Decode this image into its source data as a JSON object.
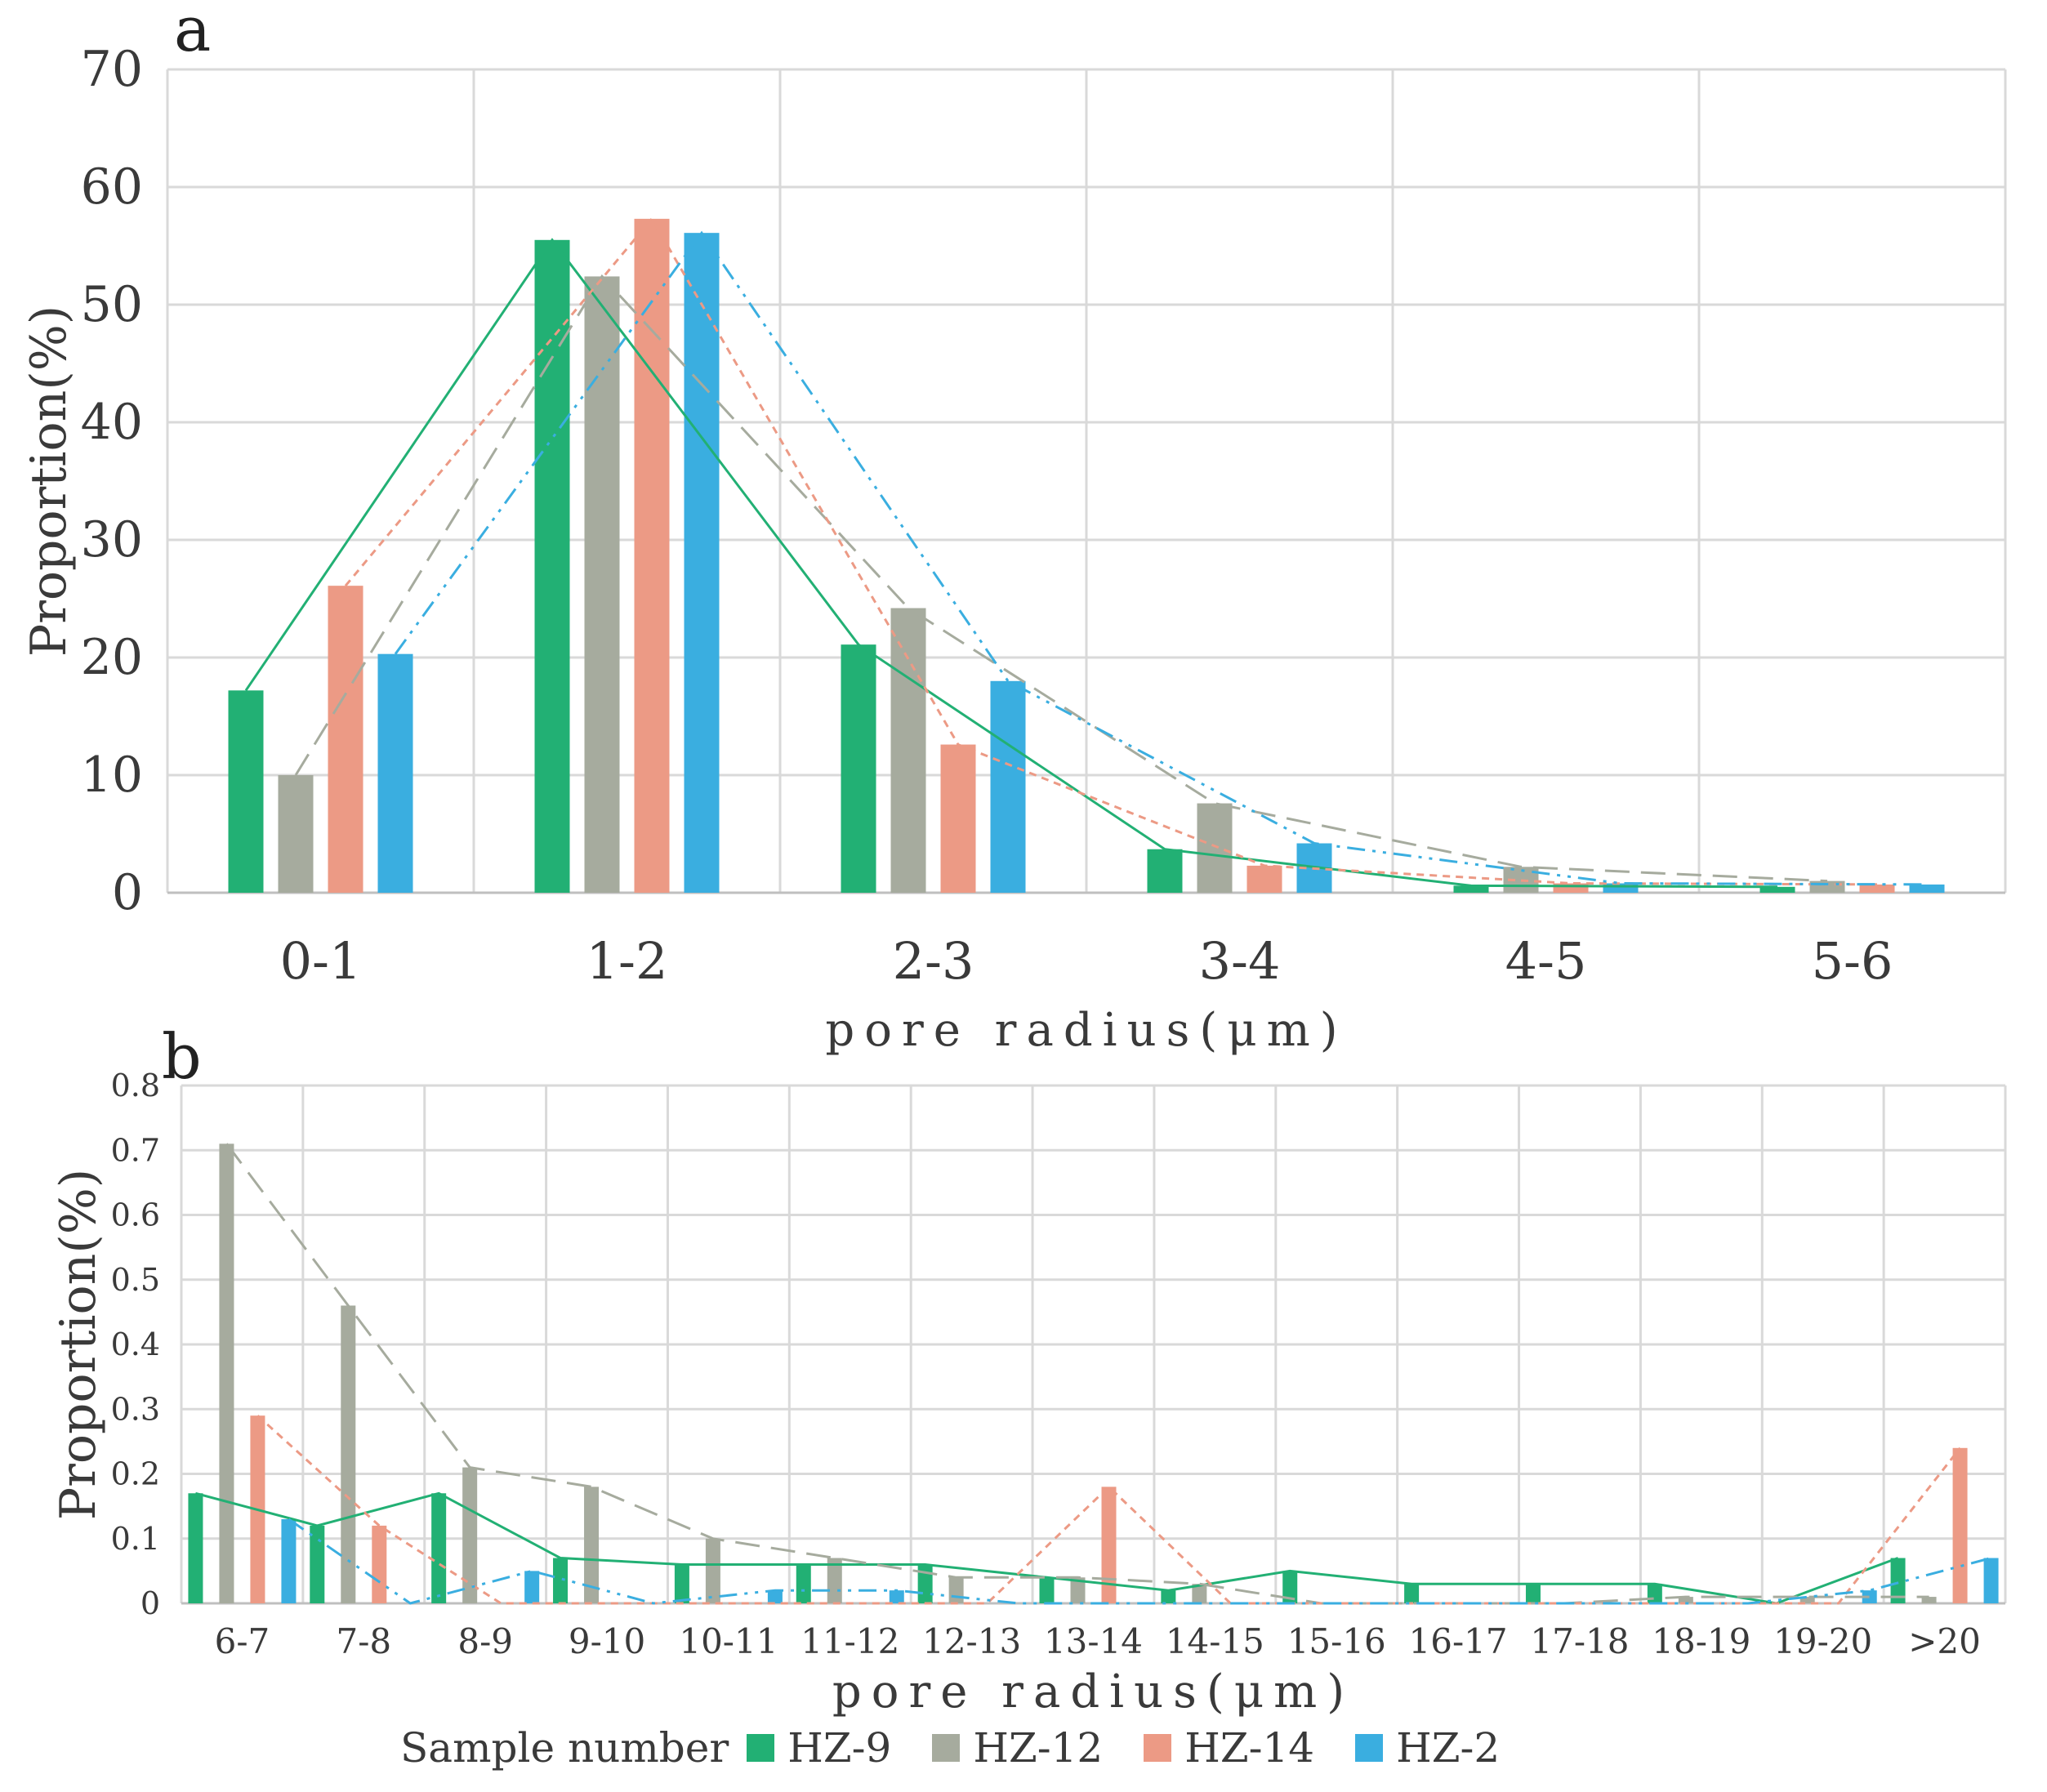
{
  "figure": {
    "legend_title": "Sample number",
    "series_names": [
      "HZ-9",
      "HZ-12",
      "HZ-14",
      "HZ-2"
    ],
    "colors": {
      "HZ-9": "#22b074",
      "HZ-12": "#a6ab9e",
      "HZ-14": "#ec9a85",
      "HZ-2": "#3aaee0",
      "grid": "#d9d9d9",
      "text": "#3a3a3a"
    }
  },
  "chart_data": [
    {
      "panel_label": "a",
      "type": "bar",
      "overlay": "line",
      "categories": [
        "0-1",
        "1-2",
        "2-3",
        "3-4",
        "4-5",
        "5-6"
      ],
      "series": [
        {
          "name": "HZ-9",
          "values": [
            17.2,
            55.5,
            21.1,
            3.7,
            0.6,
            0.5
          ]
        },
        {
          "name": "HZ-12",
          "values": [
            10.0,
            52.4,
            24.2,
            7.6,
            2.2,
            1.0
          ]
        },
        {
          "name": "HZ-14",
          "values": [
            26.1,
            57.3,
            12.6,
            2.3,
            0.8,
            0.7
          ]
        },
        {
          "name": "HZ-2",
          "values": [
            20.3,
            56.1,
            18.0,
            4.2,
            0.8,
            0.7
          ]
        }
      ],
      "xlabel": "pore radius(μm)",
      "ylabel": "Proportion(%)",
      "ylim": [
        0,
        70
      ],
      "yticks": [
        0,
        10,
        20,
        30,
        40,
        50,
        60,
        70
      ],
      "grid": true
    },
    {
      "panel_label": "b",
      "type": "bar",
      "overlay": "line",
      "categories": [
        "6-7",
        "7-8",
        "8-9",
        "9-10",
        "10-11",
        "11-12",
        "12-13",
        "13-14",
        "14-15",
        "15-16",
        "16-17",
        "17-18",
        "18-19",
        "19-20",
        ">20"
      ],
      "series": [
        {
          "name": "HZ-9",
          "values": [
            0.17,
            0.12,
            0.17,
            0.07,
            0.06,
            0.06,
            0.06,
            0.04,
            0.02,
            0.05,
            0.03,
            0.03,
            0.03,
            0.0,
            0.07
          ]
        },
        {
          "name": "HZ-12",
          "values": [
            0.71,
            0.46,
            0.21,
            0.18,
            0.1,
            0.07,
            0.04,
            0.04,
            0.03,
            0.0,
            0.0,
            0.0,
            0.01,
            0.01,
            0.01
          ]
        },
        {
          "name": "HZ-14",
          "values": [
            0.29,
            0.12,
            0.0,
            0.0,
            0.0,
            0.0,
            0.0,
            0.18,
            0.0,
            0.0,
            0.0,
            0.0,
            0.0,
            0.0,
            0.24
          ]
        },
        {
          "name": "HZ-2",
          "values": [
            0.13,
            0.0,
            0.05,
            0.0,
            0.02,
            0.02,
            0.0,
            0.0,
            0.0,
            0.0,
            0.0,
            0.0,
            0.0,
            0.02,
            0.07
          ]
        }
      ],
      "xlabel": "pore radius(μm)",
      "ylabel": "Proportion(%)",
      "ylim": [
        0,
        0.8
      ],
      "yticks": [
        0,
        0.1,
        0.2,
        0.3,
        0.4,
        0.5,
        0.6,
        0.7,
        0.8
      ],
      "grid": true
    }
  ]
}
